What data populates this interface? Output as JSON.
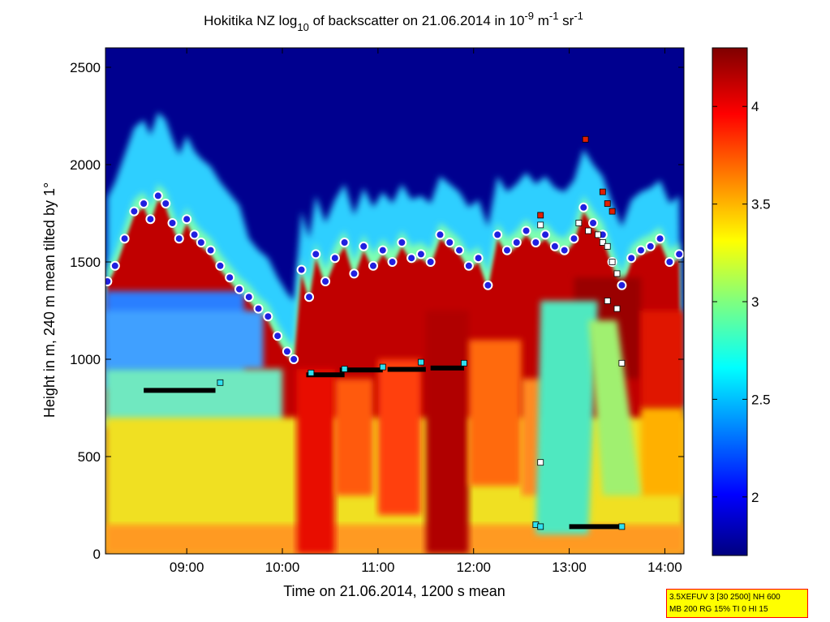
{
  "chart_data": {
    "type": "heatmap",
    "title": {
      "prefix": "Hokitika NZ log",
      "sub": "10",
      "middle": " of backscatter on 21.06.2014 in 10",
      "sup1": "-9",
      "unit_m": " m",
      "sup2": "-1",
      "unit_sr": " sr",
      "sup3": "-1"
    },
    "xlabel": "Time on 21.06.2014, 1200 s mean",
    "ylabel": "Height in m, 240 m mean tilted by 1°",
    "xlim_hours": [
      8.15,
      14.2
    ],
    "ylim": [
      0,
      2600
    ],
    "x_ticks": [
      {
        "label": "09:00",
        "value": 9.0
      },
      {
        "label": "10:00",
        "value": 10.0
      },
      {
        "label": "11:00",
        "value": 11.0
      },
      {
        "label": "12:00",
        "value": 12.0
      },
      {
        "label": "13:00",
        "value": 13.0
      },
      {
        "label": "14:00",
        "value": 14.0
      }
    ],
    "y_ticks": [
      {
        "label": "0",
        "value": 0
      },
      {
        "label": "500",
        "value": 500
      },
      {
        "label": "1000",
        "value": 1000
      },
      {
        "label": "1500",
        "value": 1500
      },
      {
        "label": "2000",
        "value": 2000
      },
      {
        "label": "2500",
        "value": 2500
      }
    ],
    "colorbar": {
      "range": [
        1.7,
        4.3
      ],
      "ticks": [
        {
          "label": "2",
          "value": 2.0
        },
        {
          "label": "2.5",
          "value": 2.5
        },
        {
          "label": "3",
          "value": 3.0
        },
        {
          "label": "3.5",
          "value": 3.5
        },
        {
          "label": "4",
          "value": 4.0
        }
      ],
      "colormap": "jet"
    },
    "mixing_layer_top": {
      "marker": "blue circle, white edge",
      "points": [
        [
          8.17,
          1400
        ],
        [
          8.25,
          1480
        ],
        [
          8.35,
          1620
        ],
        [
          8.45,
          1760
        ],
        [
          8.55,
          1800
        ],
        [
          8.62,
          1720
        ],
        [
          8.7,
          1840
        ],
        [
          8.78,
          1800
        ],
        [
          8.85,
          1700
        ],
        [
          8.92,
          1620
        ],
        [
          9.0,
          1720
        ],
        [
          9.08,
          1640
        ],
        [
          9.15,
          1600
        ],
        [
          9.25,
          1560
        ],
        [
          9.35,
          1480
        ],
        [
          9.45,
          1420
        ],
        [
          9.55,
          1360
        ],
        [
          9.65,
          1320
        ],
        [
          9.75,
          1260
        ],
        [
          9.85,
          1220
        ],
        [
          9.95,
          1120
        ],
        [
          10.05,
          1040
        ],
        [
          10.12,
          1000
        ],
        [
          10.2,
          1460
        ],
        [
          10.28,
          1320
        ],
        [
          10.35,
          1540
        ],
        [
          10.45,
          1400
        ],
        [
          10.55,
          1520
        ],
        [
          10.65,
          1600
        ],
        [
          10.75,
          1440
        ],
        [
          10.85,
          1580
        ],
        [
          10.95,
          1480
        ],
        [
          11.05,
          1560
        ],
        [
          11.15,
          1500
        ],
        [
          11.25,
          1600
        ],
        [
          11.35,
          1520
        ],
        [
          11.45,
          1540
        ],
        [
          11.55,
          1500
        ],
        [
          11.65,
          1640
        ],
        [
          11.75,
          1600
        ],
        [
          11.85,
          1560
        ],
        [
          11.95,
          1480
        ],
        [
          12.05,
          1520
        ],
        [
          12.15,
          1380
        ],
        [
          12.25,
          1640
        ],
        [
          12.35,
          1560
        ],
        [
          12.45,
          1600
        ],
        [
          12.55,
          1660
        ],
        [
          12.65,
          1600
        ],
        [
          12.75,
          1640
        ],
        [
          12.85,
          1580
        ],
        [
          12.95,
          1560
        ],
        [
          13.05,
          1620
        ],
        [
          13.15,
          1780
        ],
        [
          13.25,
          1700
        ],
        [
          13.35,
          1640
        ],
        [
          13.45,
          1500
        ],
        [
          13.55,
          1380
        ],
        [
          13.65,
          1520
        ],
        [
          13.75,
          1560
        ],
        [
          13.85,
          1580
        ],
        [
          13.95,
          1620
        ],
        [
          14.05,
          1500
        ],
        [
          14.15,
          1540
        ]
      ]
    },
    "cloud_base_layers": [
      {
        "marker": "black",
        "x": [
          8.55,
          9.3
        ],
        "y": 840
      },
      {
        "marker": "black",
        "x": [
          10.25,
          10.65
        ],
        "y": 920
      },
      {
        "marker": "black",
        "x": [
          10.6,
          11.05
        ],
        "y": 945
      },
      {
        "marker": "black",
        "x": [
          11.1,
          11.5
        ],
        "y": 948
      },
      {
        "marker": "black",
        "x": [
          11.55,
          11.9
        ],
        "y": 955
      },
      {
        "marker": "black",
        "x": [
          13.0,
          13.55
        ],
        "y": 140
      }
    ],
    "cloud_markers": {
      "cyan": [
        [
          9.35,
          880
        ],
        [
          10.3,
          930
        ],
        [
          10.65,
          950
        ],
        [
          11.05,
          960
        ],
        [
          11.45,
          985
        ],
        [
          11.9,
          980
        ],
        [
          12.65,
          150
        ],
        [
          12.7,
          140
        ],
        [
          13.55,
          140
        ]
      ],
      "white": [
        [
          12.7,
          470
        ],
        [
          13.1,
          1700
        ],
        [
          13.2,
          1660
        ],
        [
          13.3,
          1640
        ],
        [
          13.35,
          1600
        ],
        [
          13.4,
          1580
        ],
        [
          13.45,
          1500
        ],
        [
          13.5,
          1440
        ],
        [
          13.4,
          1300
        ],
        [
          13.5,
          1260
        ],
        [
          13.55,
          980
        ],
        [
          12.7,
          1690
        ]
      ],
      "red": [
        [
          13.17,
          2130
        ],
        [
          12.7,
          1740
        ],
        [
          13.35,
          1860
        ],
        [
          13.4,
          1800
        ],
        [
          13.45,
          1760
        ]
      ]
    }
  },
  "info_box": {
    "line1": "3.5XEFUV 3 [30 2500] NH 600",
    "line2": "MB 200 RG 15% TI 0 HI 15"
  }
}
